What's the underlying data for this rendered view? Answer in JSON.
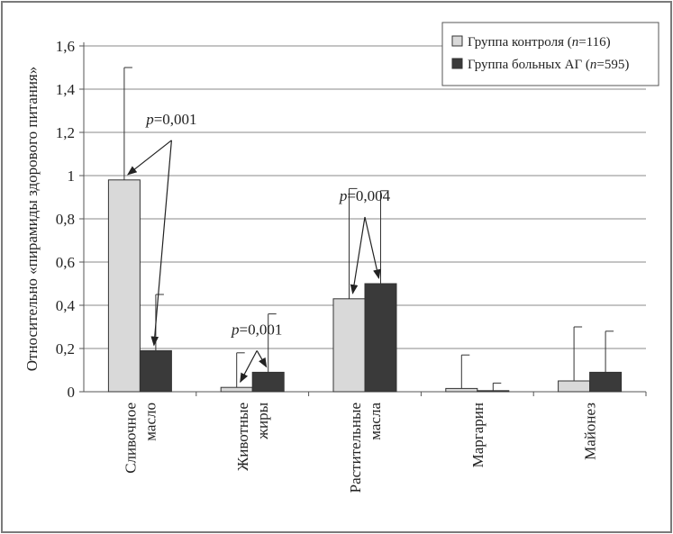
{
  "chart_data": {
    "type": "bar",
    "ylabel": "Относительно «пирамиды здорового питания»",
    "ylim": [
      0,
      1.6
    ],
    "yticks": [
      "0",
      "0,2",
      "0,4",
      "0,6",
      "0,8",
      "1",
      "1,2",
      "1,4",
      "1,6"
    ],
    "categories": [
      [
        "Сливочное",
        "масло"
      ],
      [
        "Животные",
        "жиры"
      ],
      [
        "Растительные",
        "масла"
      ],
      [
        "Маргарин"
      ],
      [
        "Майонез"
      ]
    ],
    "series": [
      {
        "name": "Группа контроля",
        "n_label": "n",
        "n_value": "=116",
        "color": "#d9d9d9",
        "values": [
          0.98,
          0.02,
          0.43,
          0.015,
          0.05
        ],
        "errors": [
          0.52,
          0.16,
          0.51,
          0.155,
          0.25
        ]
      },
      {
        "name": "Группа больных АГ",
        "n_label": "n",
        "n_value": "=595",
        "color": "#3a3a3a",
        "values": [
          0.19,
          0.09,
          0.5,
          0.005,
          0.09
        ],
        "errors": [
          0.26,
          0.27,
          0.43,
          0.035,
          0.19
        ]
      }
    ],
    "annotations": [
      {
        "p": "p",
        "text": "=0,001",
        "category": 0
      },
      {
        "p": "p",
        "text": "=0,001",
        "category": 1
      },
      {
        "p": "p",
        "text": "=0,004",
        "category": 2
      }
    ],
    "grid": true,
    "legend_position": "top-right"
  }
}
